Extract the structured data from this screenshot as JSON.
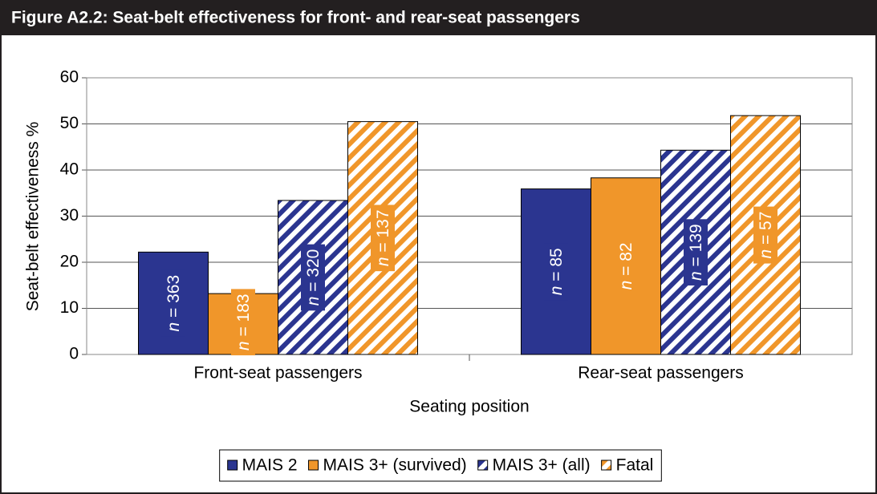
{
  "chart_data": {
    "type": "bar",
    "title": "Figure A2.2:  Seat-belt effectiveness for front- and rear-seat passengers",
    "x_label": "Seating position",
    "y_label": "Seat-belt effectiveness %",
    "categories": [
      "Front-seat passengers",
      "Rear-seat passengers"
    ],
    "series": [
      {
        "name": "MAIS 2",
        "color": "#2b3590",
        "pattern": "solid",
        "values": [
          22.2,
          35.9
        ],
        "annotations": [
          "n = 363",
          "n = 85"
        ]
      },
      {
        "name": "MAIS 3+ (survived)",
        "color": "#f0962a",
        "pattern": "solid",
        "values": [
          13.2,
          38.3
        ],
        "annotations": [
          "n = 183",
          "n = 82"
        ]
      },
      {
        "name": "MAIS 3+ (all)",
        "color": "#2b3590",
        "pattern": "stripes",
        "values": [
          33.4,
          44.3
        ],
        "annotations": [
          "n = 320",
          "n = 139"
        ]
      },
      {
        "name": "Fatal",
        "color": "#f0962a",
        "pattern": "stripes",
        "values": [
          50.5,
          51.8
        ],
        "annotations": [
          "n = 137",
          "n = 57"
        ]
      }
    ],
    "ylim": [
      0,
      60
    ],
    "yticks": [
      0,
      10,
      20,
      30,
      40,
      50,
      60
    ],
    "grid": true,
    "legend": "bottom"
  }
}
